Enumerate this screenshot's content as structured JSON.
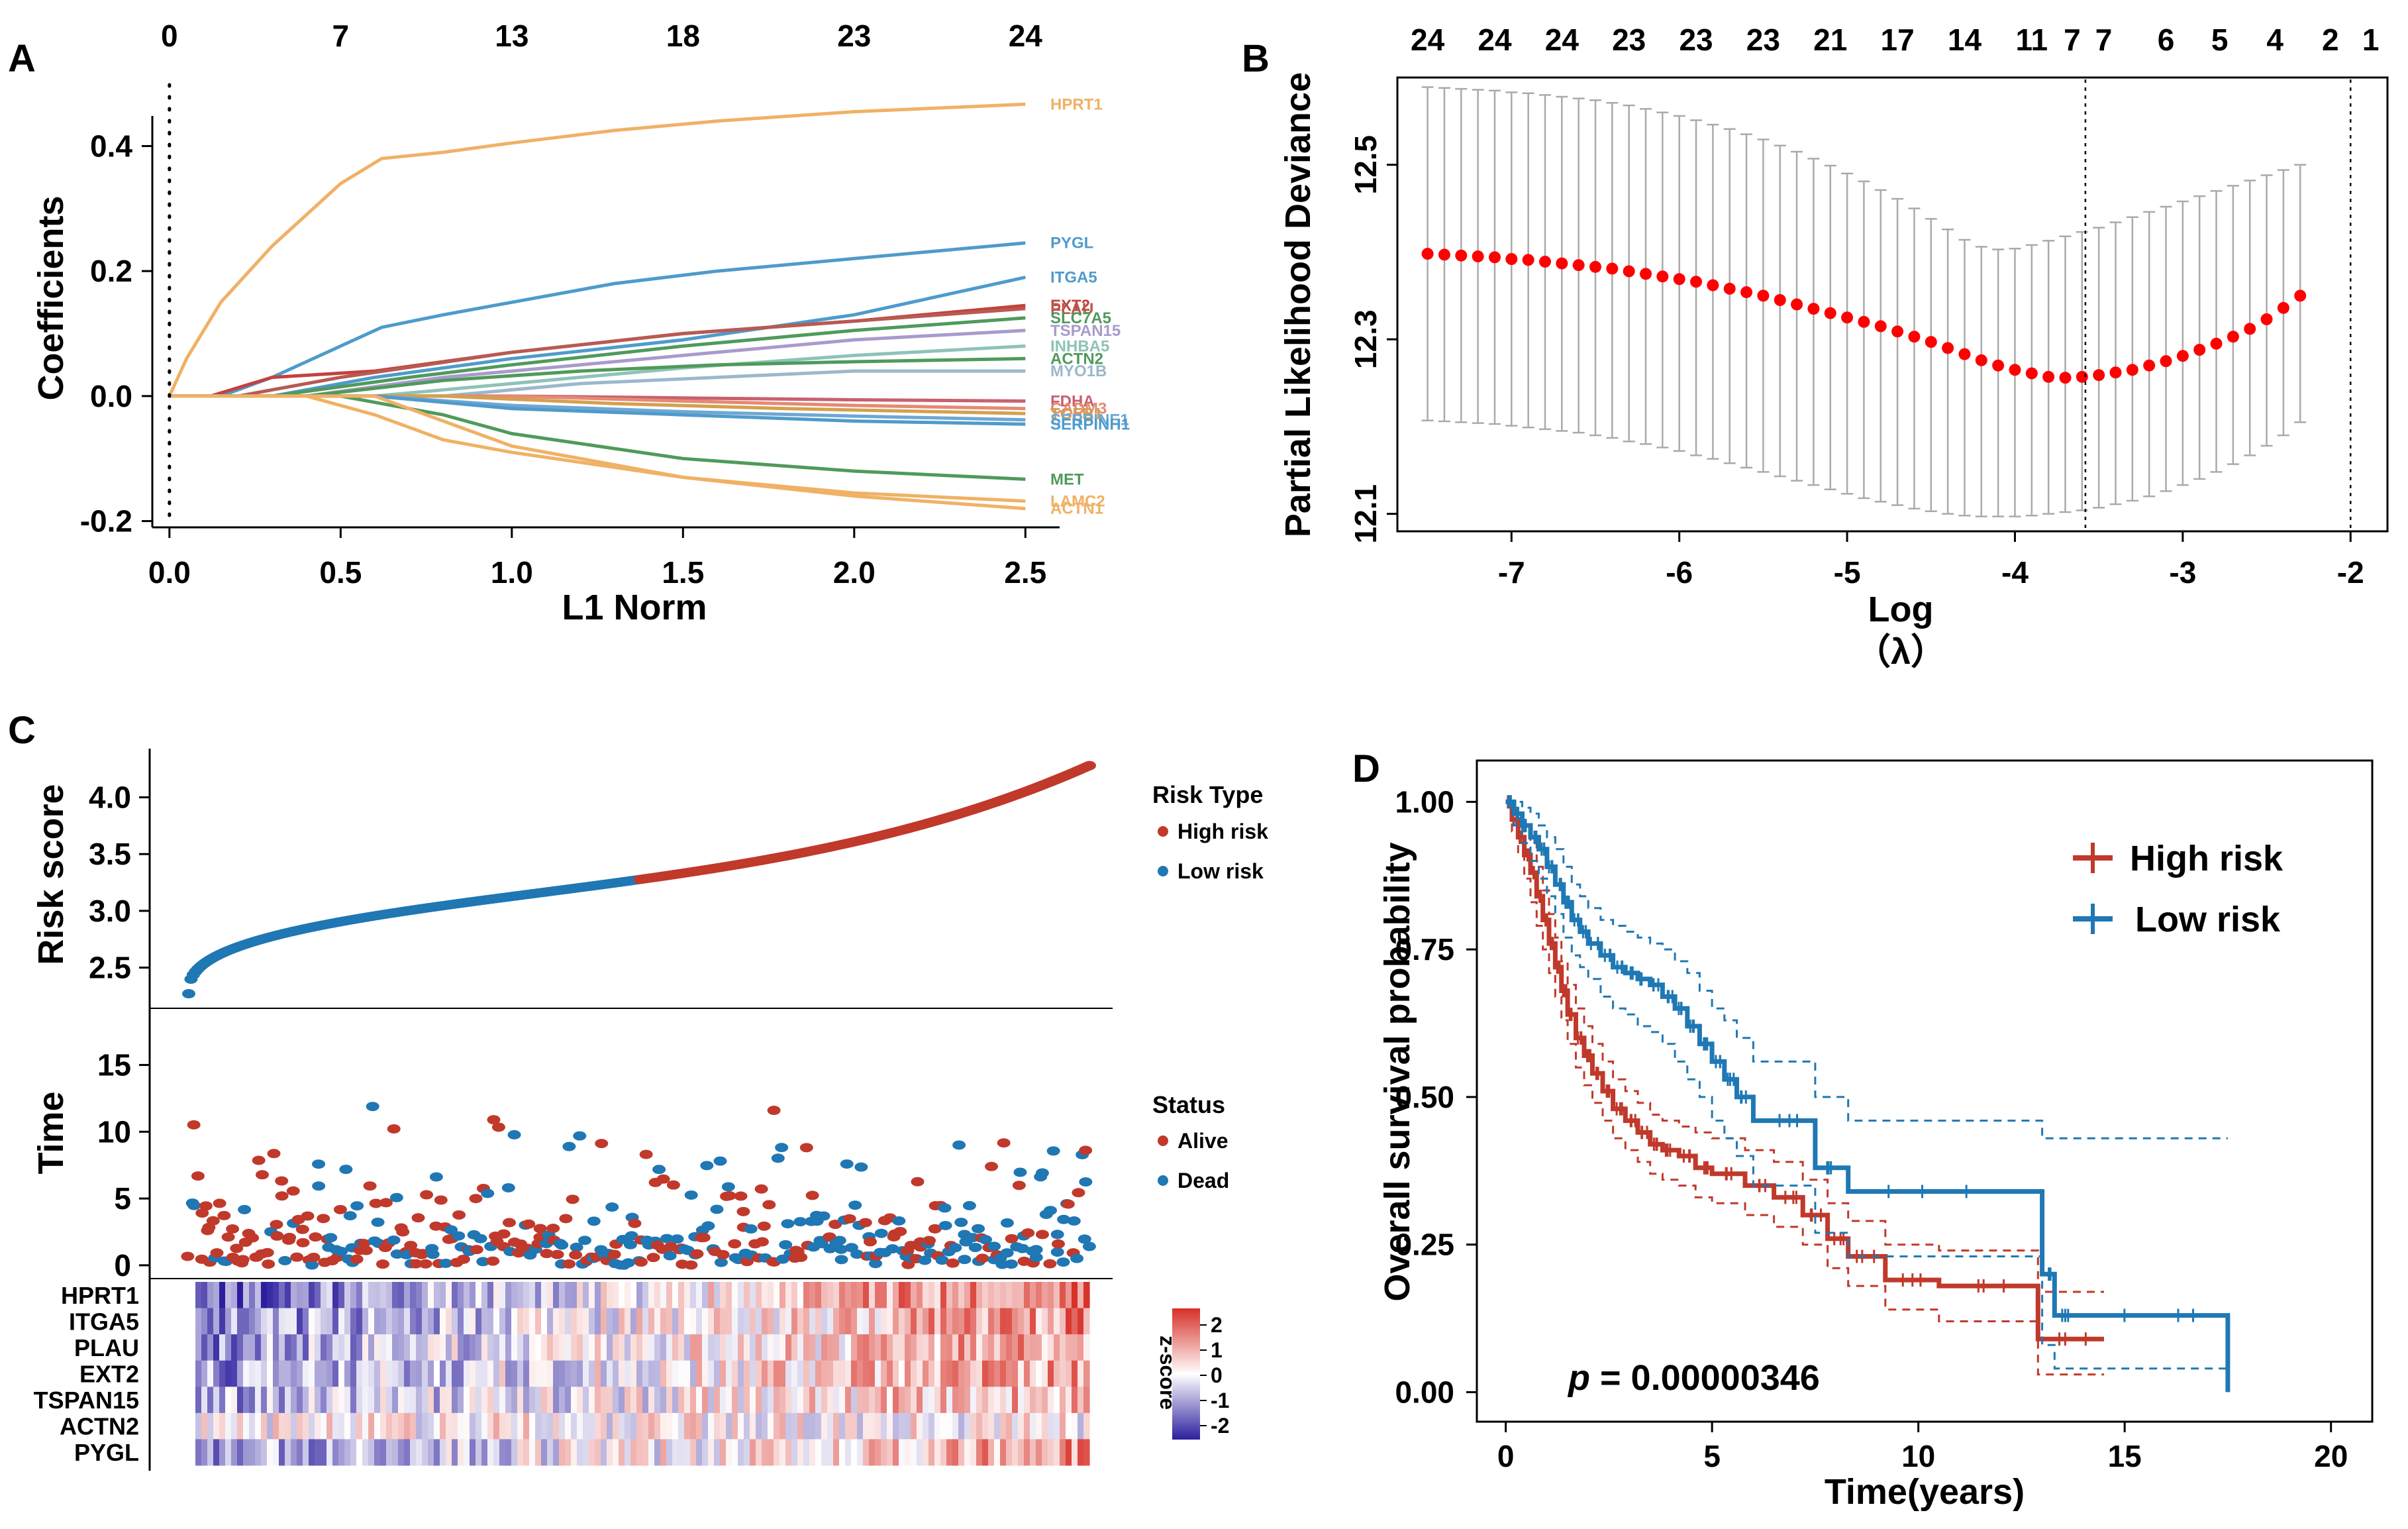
{
  "panels": {
    "a": {
      "letter": "A"
    },
    "b": {
      "letter": "B"
    },
    "c": {
      "letter": "C"
    },
    "d": {
      "letter": "D"
    }
  },
  "chart_data": [
    {
      "id": "A",
      "type": "line",
      "title": "",
      "xlabel": "L1 Norm",
      "ylabel": "Coefficients",
      "xlim": [
        -0.05,
        2.6
      ],
      "ylim": [
        -0.21,
        0.48
      ],
      "xticks": [
        0.0,
        0.5,
        1.0,
        1.5,
        2.0,
        2.5
      ],
      "xtick_labels": [
        "0.0",
        "0.5",
        "1.0",
        "1.5",
        "2.0",
        "2.5"
      ],
      "yticks": [
        -0.2,
        0.0,
        0.2,
        0.4
      ],
      "ytick_labels": [
        "-0.2",
        "0.0",
        "0.2",
        "0.4"
      ],
      "top_ticks": [
        0.0,
        0.5,
        1.0,
        1.5,
        2.0,
        2.5
      ],
      "top_tick_labels": [
        "0",
        "7",
        "13",
        "18",
        "23",
        "24"
      ],
      "vline_x": 0.0,
      "series": [
        {
          "name": "HPRT1",
          "color": "#F0B165",
          "x": [
            0,
            0.05,
            0.15,
            0.3,
            0.5,
            0.62,
            0.8,
            1.0,
            1.3,
            1.6,
            2.0,
            2.5
          ],
          "values": [
            0,
            0.06,
            0.15,
            0.24,
            0.34,
            0.38,
            0.39,
            0.405,
            0.425,
            0.44,
            0.455,
            0.467
          ]
        },
        {
          "name": "PYGL",
          "color": "#4E9BCB",
          "x": [
            0,
            0.15,
            0.3,
            0.5,
            0.62,
            0.8,
            1.0,
            1.3,
            1.6,
            2.0,
            2.5
          ],
          "values": [
            0,
            0,
            0.03,
            0.08,
            0.11,
            0.13,
            0.15,
            0.18,
            0.2,
            0.22,
            0.245
          ]
        },
        {
          "name": "ITGA5",
          "color": "#4E9BCB",
          "x": [
            0,
            0.3,
            0.6,
            1.0,
            1.5,
            2.0,
            2.5
          ],
          "values": [
            0,
            0,
            0.03,
            0.06,
            0.09,
            0.13,
            0.19
          ]
        },
        {
          "name": "EXT2",
          "color": "#C4423C",
          "x": [
            0,
            0.12,
            0.3,
            0.6,
            1.0,
            1.5,
            2.0,
            2.5
          ],
          "values": [
            0,
            0,
            0.03,
            0.04,
            0.07,
            0.1,
            0.12,
            0.145
          ]
        },
        {
          "name": "PLAU",
          "color": "#B85A52",
          "x": [
            0,
            0.2,
            0.5,
            1.0,
            1.5,
            2.0,
            2.5
          ],
          "values": [
            0,
            0,
            0.03,
            0.07,
            0.1,
            0.12,
            0.14
          ]
        },
        {
          "name": "SLC7A5",
          "color": "#4F9A5B",
          "x": [
            0,
            0.3,
            0.7,
            1.0,
            1.5,
            2.0,
            2.5
          ],
          "values": [
            0,
            0,
            0.03,
            0.05,
            0.08,
            0.105,
            0.125
          ]
        },
        {
          "name": "TSPAN15",
          "color": "#A99ACD",
          "x": [
            0,
            0.4,
            0.8,
            1.2,
            1.6,
            2.0,
            2.5
          ],
          "values": [
            0,
            0,
            0.03,
            0.05,
            0.07,
            0.09,
            0.105
          ]
        },
        {
          "name": "INHBA5",
          "color": "#8FC2B8",
          "x": [
            0,
            0.6,
            1.0,
            1.5,
            2.0,
            2.5
          ],
          "values": [
            0,
            0,
            0.02,
            0.045,
            0.065,
            0.08
          ]
        },
        {
          "name": "ACTN2",
          "color": "#4F9A5B",
          "x": [
            0,
            0.4,
            0.8,
            1.2,
            1.6,
            2.0,
            2.5
          ],
          "values": [
            0,
            0,
            0.025,
            0.04,
            0.05,
            0.055,
            0.06
          ]
        },
        {
          "name": "MYO1B",
          "color": "#9BB8CC",
          "x": [
            0,
            0.8,
            1.2,
            1.6,
            2.0,
            2.5
          ],
          "values": [
            0,
            0,
            0.02,
            0.03,
            0.04,
            0.04
          ]
        },
        {
          "name": "FDHA",
          "color": "#C8606E",
          "x": [
            0,
            1.0,
            1.5,
            2.0,
            2.5
          ],
          "values": [
            0,
            0,
            -0.003,
            -0.006,
            -0.008
          ]
        },
        {
          "name": "CADM3",
          "color": "#E58A74",
          "x": [
            0,
            1.0,
            1.5,
            2.0,
            2.5
          ],
          "values": [
            0,
            0,
            -0.008,
            -0.015,
            -0.02
          ]
        },
        {
          "name": "TGFB1",
          "color": "#D4A050",
          "x": [
            0,
            0.8,
            1.3,
            1.8,
            2.5
          ],
          "values": [
            0,
            0,
            -0.012,
            -0.02,
            -0.028
          ]
        },
        {
          "name": "SERPINE1",
          "color": "#6FA7D3",
          "x": [
            0,
            0.6,
            1.0,
            1.5,
            2.0,
            2.5
          ],
          "values": [
            0,
            0,
            -0.015,
            -0.025,
            -0.032,
            -0.038
          ]
        },
        {
          "name": "SERPINH1",
          "color": "#4E9BCB",
          "x": [
            0,
            0.6,
            1.0,
            1.5,
            2.0,
            2.5
          ],
          "values": [
            0,
            0,
            -0.02,
            -0.03,
            -0.04,
            -0.045
          ]
        },
        {
          "name": "MET",
          "color": "#4F9A5B",
          "x": [
            0,
            0.5,
            0.8,
            1.0,
            1.5,
            2.0,
            2.5
          ],
          "values": [
            0,
            0,
            -0.03,
            -0.06,
            -0.1,
            -0.12,
            -0.133
          ]
        },
        {
          "name": "LAMC2",
          "color": "#F0B165",
          "x": [
            0,
            0.6,
            0.8,
            1.0,
            1.5,
            2.0,
            2.5
          ],
          "values": [
            0,
            0,
            -0.04,
            -0.08,
            -0.13,
            -0.155,
            -0.168
          ]
        },
        {
          "name": "ACTN1",
          "color": "#F0B165",
          "x": [
            0,
            0.4,
            0.6,
            0.8,
            1.0,
            1.5,
            2.0,
            2.5
          ],
          "values": [
            0,
            0,
            -0.03,
            -0.07,
            -0.09,
            -0.13,
            -0.16,
            -0.18
          ]
        }
      ],
      "label_series": [
        "HPRT1",
        "PYGL",
        "ITGA5",
        "EXT2",
        "PLAU",
        "SLC7A5",
        "TSPAN15",
        "INHBA5",
        "ACTN2",
        "MYO1B",
        "FDHA",
        "CADM3",
        "TGFB1",
        "SERPINE1",
        "SERPINH1",
        "MET",
        "LAMC2",
        "ACTN1"
      ]
    },
    {
      "id": "B",
      "type": "scatter",
      "title": "",
      "xlabel": "Log",
      "xlabel2": "（λ）",
      "ylabel": "Partial Likelihood Deviance",
      "xlim": [
        -7.68,
        -1.78
      ],
      "ylim": [
        12.08,
        12.6
      ],
      "xticks": [
        -7,
        -6,
        -5,
        -4,
        -3,
        -2
      ],
      "xtick_labels": [
        "-7",
        "-6",
        "-5",
        "-4",
        "-3",
        "-2"
      ],
      "yticks": [
        12.1,
        12.3,
        12.5
      ],
      "ytick_labels": [
        "12.1",
        "12.3",
        "12.5"
      ],
      "top_tick_labels": [
        "24",
        "24",
        "24",
        "23",
        "23",
        "23",
        "21",
        "17",
        "14",
        "11",
        "7",
        "7",
        "6",
        "5",
        "4",
        "2",
        "1"
      ],
      "top_tick_x": [
        -7.5,
        -7.1,
        -6.7,
        -6.3,
        -5.9,
        -5.5,
        -5.1,
        -4.7,
        -4.3,
        -3.9,
        -3.58,
        -3.55,
        -3.1,
        -2.78,
        -2.45,
        -2.12,
        -1.88
      ],
      "lambda_min": -3.58,
      "lambda_1se": -2.0,
      "point_color": "#FF0000",
      "errorbar_color": "#AAAAAA",
      "lambda_start": -7.5,
      "lambda_step": 0.1,
      "mean": [
        12.398,
        12.397,
        12.396,
        12.395,
        12.394,
        12.392,
        12.391,
        12.389,
        12.387,
        12.385,
        12.383,
        12.381,
        12.378,
        12.375,
        12.372,
        12.369,
        12.366,
        12.362,
        12.358,
        12.354,
        12.35,
        12.345,
        12.34,
        12.335,
        12.33,
        12.325,
        12.32,
        12.315,
        12.309,
        12.303,
        12.297,
        12.29,
        12.283,
        12.276,
        12.27,
        12.265,
        12.261,
        12.257,
        12.256,
        12.257,
        12.259,
        12.262,
        12.265,
        12.27,
        12.275,
        12.281,
        12.288,
        12.295,
        12.303,
        12.312,
        12.323,
        12.336,
        12.35
      ],
      "lower": [
        12.207,
        12.206,
        12.205,
        12.204,
        12.203,
        12.201,
        12.199,
        12.197,
        12.195,
        12.193,
        12.19,
        12.187,
        12.183,
        12.18,
        12.176,
        12.172,
        12.167,
        12.163,
        12.158,
        12.153,
        12.148,
        12.143,
        12.138,
        12.133,
        12.128,
        12.123,
        12.118,
        12.114,
        12.11,
        12.106,
        12.103,
        12.1,
        12.098,
        12.097,
        12.097,
        12.097,
        12.098,
        12.1,
        12.102,
        12.104,
        12.107,
        12.111,
        12.115,
        12.12,
        12.126,
        12.133,
        12.14,
        12.148,
        12.157,
        12.167,
        12.178,
        12.19,
        12.205
      ],
      "upper": [
        12.589,
        12.588,
        12.587,
        12.586,
        12.585,
        12.583,
        12.582,
        12.58,
        12.578,
        12.576,
        12.574,
        12.571,
        12.568,
        12.564,
        12.56,
        12.556,
        12.551,
        12.546,
        12.541,
        12.535,
        12.529,
        12.522,
        12.515,
        12.507,
        12.499,
        12.49,
        12.481,
        12.471,
        12.461,
        12.45,
        12.438,
        12.426,
        12.414,
        12.406,
        12.403,
        12.404,
        12.408,
        12.413,
        12.418,
        12.423,
        12.428,
        12.434,
        12.44,
        12.446,
        12.452,
        12.458,
        12.464,
        12.47,
        12.476,
        12.482,
        12.488,
        12.494,
        12.5
      ]
    },
    {
      "id": "C",
      "type": "scatter",
      "title": "",
      "subplots": [
        {
          "ylabel": "Risk score",
          "yticks": [
            2.5,
            3.0,
            3.5,
            4.0
          ],
          "ytick_labels": [
            "2.5",
            "3.0",
            "3.5",
            "4.0"
          ],
          "ylim": [
            2.2,
            4.4
          ]
        },
        {
          "ylabel": "Time",
          "yticks": [
            0,
            5,
            10,
            15
          ],
          "ytick_labels": [
            "0",
            "5",
            "10",
            "15"
          ],
          "ylim": [
            -0.6,
            18.6
          ]
        }
      ],
      "n_patients": 400,
      "risk_min": 2.27,
      "risk_max": 4.28,
      "risk_cutoff_index": 200,
      "legend_risk": {
        "title": "Risk Type",
        "items": [
          {
            "label": "High risk",
            "color": "#C0392B"
          },
          {
            "label": "Low risk",
            "color": "#1F77B4"
          }
        ]
      },
      "legend_status": {
        "title": "Status",
        "items": [
          {
            "label": "Alive",
            "color": "#C0392B"
          },
          {
            "label": "Dead",
            "color": "#1F77B4"
          }
        ]
      },
      "heatmap_genes": [
        "HPRT1",
        "ITGA5",
        "PLAU",
        "EXT2",
        "TSPAN15",
        "ACTN2",
        "PYGL"
      ],
      "heatmap_columns": 150,
      "colorbar": {
        "title": "z-score",
        "ticks": [
          "2",
          "1",
          "0",
          "-1",
          "-2"
        ],
        "high_color": "#D73027",
        "mid_color": "#FFFFFF",
        "low_color": "#2C1F9E"
      }
    },
    {
      "id": "D",
      "type": "line",
      "title": "",
      "xlabel": "Time(years)",
      "ylabel": "Overall survival probability",
      "xlim": [
        -0.7,
        21
      ],
      "ylim": [
        -0.05,
        1.07
      ],
      "xticks": [
        0,
        5,
        10,
        15,
        20
      ],
      "xtick_labels": [
        "0",
        "5",
        "10",
        "15",
        "20"
      ],
      "yticks": [
        0.0,
        0.25,
        0.5,
        0.75,
        1.0
      ],
      "ytick_labels": [
        "0.00",
        "0.25",
        "0.50",
        "0.75",
        "1.00"
      ],
      "annotation": {
        "p_symbol": "p",
        "p_text": " = 0.00000346"
      },
      "series": [
        {
          "name": "High risk",
          "color": "#C0392B",
          "x": [
            0,
            0.15,
            0.3,
            0.45,
            0.6,
            0.75,
            0.9,
            1.05,
            1.2,
            1.35,
            1.5,
            1.7,
            1.9,
            2.1,
            2.35,
            2.6,
            2.9,
            3.2,
            3.5,
            3.8,
            4.2,
            4.6,
            5.0,
            5.8,
            6.5,
            7.2,
            7.8,
            8.3,
            9.2,
            10.5,
            12.9,
            14.5
          ],
          "values": [
            1.0,
            0.97,
            0.94,
            0.91,
            0.88,
            0.84,
            0.8,
            0.76,
            0.72,
            0.68,
            0.64,
            0.6,
            0.57,
            0.54,
            0.51,
            0.48,
            0.46,
            0.44,
            0.42,
            0.41,
            0.4,
            0.38,
            0.37,
            0.35,
            0.33,
            0.3,
            0.26,
            0.23,
            0.19,
            0.18,
            0.09,
            0.09
          ],
          "lower": [
            1.0,
            0.95,
            0.91,
            0.87,
            0.83,
            0.79,
            0.75,
            0.71,
            0.67,
            0.63,
            0.59,
            0.55,
            0.52,
            0.49,
            0.46,
            0.43,
            0.41,
            0.39,
            0.37,
            0.36,
            0.35,
            0.33,
            0.32,
            0.3,
            0.28,
            0.25,
            0.21,
            0.18,
            0.14,
            0.12,
            0.03,
            0.03
          ],
          "upper": [
            1.0,
            0.99,
            0.97,
            0.95,
            0.93,
            0.89,
            0.85,
            0.81,
            0.77,
            0.73,
            0.69,
            0.65,
            0.62,
            0.59,
            0.56,
            0.53,
            0.51,
            0.49,
            0.47,
            0.46,
            0.45,
            0.44,
            0.43,
            0.41,
            0.39,
            0.36,
            0.32,
            0.29,
            0.25,
            0.24,
            0.17,
            0.17
          ]
        },
        {
          "name": "Low risk",
          "color": "#1F78B4",
          "x": [
            0,
            0.2,
            0.4,
            0.6,
            0.8,
            1.0,
            1.2,
            1.4,
            1.6,
            1.8,
            2.0,
            2.3,
            2.6,
            2.9,
            3.2,
            3.5,
            3.8,
            4.1,
            4.4,
            4.7,
            5.0,
            5.3,
            5.6,
            6.0,
            7.5,
            8.3,
            13.0,
            13.3,
            13.8,
            17.5
          ],
          "values": [
            1.0,
            0.98,
            0.96,
            0.94,
            0.92,
            0.89,
            0.86,
            0.83,
            0.8,
            0.78,
            0.76,
            0.74,
            0.72,
            0.71,
            0.7,
            0.69,
            0.67,
            0.65,
            0.62,
            0.59,
            0.56,
            0.53,
            0.5,
            0.46,
            0.38,
            0.34,
            0.2,
            0.13,
            0.13,
            0.0
          ],
          "lower": [
            1.0,
            0.96,
            0.93,
            0.9,
            0.87,
            0.84,
            0.81,
            0.77,
            0.74,
            0.72,
            0.7,
            0.67,
            0.65,
            0.64,
            0.62,
            0.61,
            0.59,
            0.56,
            0.53,
            0.5,
            0.46,
            0.43,
            0.4,
            0.35,
            0.27,
            0.23,
            0.08,
            0.04,
            0.04,
            0.04
          ],
          "upper": [
            1.0,
            1.0,
            0.99,
            0.98,
            0.96,
            0.94,
            0.92,
            0.89,
            0.86,
            0.84,
            0.82,
            0.8,
            0.79,
            0.78,
            0.77,
            0.76,
            0.75,
            0.73,
            0.71,
            0.68,
            0.65,
            0.63,
            0.6,
            0.56,
            0.5,
            0.46,
            0.43,
            0.43,
            0.43,
            0.43
          ]
        }
      ]
    }
  ]
}
